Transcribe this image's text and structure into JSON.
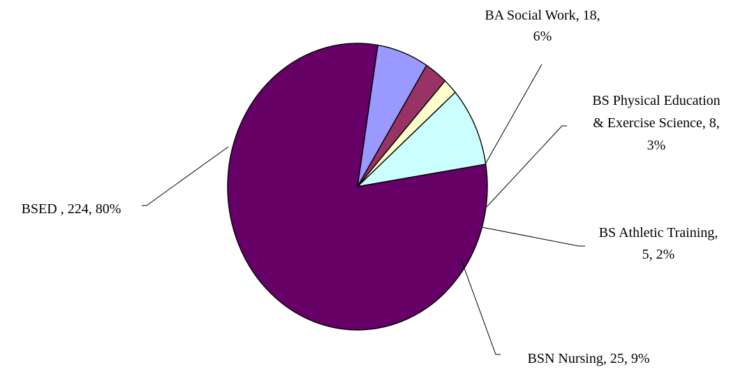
{
  "chart_data": {
    "type": "pie",
    "title": "",
    "start_angle_deg": 81,
    "slices": [
      {
        "label_lines": [
          "BA Social Work, 18,",
          "6%"
        ],
        "category": "BA Social Work",
        "value": 18,
        "percent": "6%",
        "color": "#9999FF"
      },
      {
        "label_lines": [
          "BS Physical Education",
          "& Exercise Science, 8,",
          "3%"
        ],
        "category": "BS Physical Education & Exercise Science",
        "value": 8,
        "percent": "3%",
        "color": "#993366"
      },
      {
        "label_lines": [
          "BS Athletic Training,",
          "5, 2%"
        ],
        "category": "BS Athletic Training",
        "value": 5,
        "percent": "2%",
        "color": "#FFFFCC"
      },
      {
        "label_lines": [
          "BSN Nursing, 25, 9%"
        ],
        "category": "BSN Nursing",
        "value": 25,
        "percent": "9%",
        "color": "#CCFFFF"
      },
      {
        "label_lines": [
          "BSED , 224, 80%"
        ],
        "category": "BSED",
        "value": 224,
        "percent": "80%",
        "color": "#660066"
      }
    ]
  }
}
